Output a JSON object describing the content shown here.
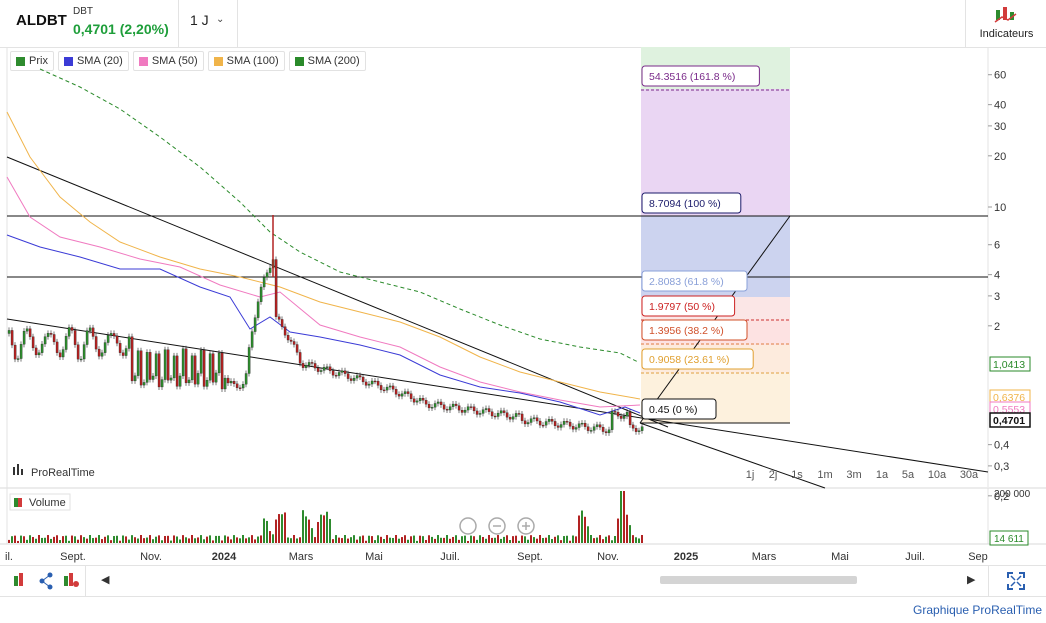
{
  "header": {
    "symbol": "ALDBT",
    "exchange": "DBT",
    "price_change": "0,4701 (2,20%)",
    "timeframe": "1 J",
    "indicators_label": "Indicateurs",
    "price_color": "#1e9e3a"
  },
  "legend": [
    {
      "label": "Prix",
      "color": "#2e8b2e"
    },
    {
      "label": "SMA (20)",
      "color": "#3b3bd6"
    },
    {
      "label": "SMA (50)",
      "color": "#f07ac0"
    },
    {
      "label": "SMA (100)",
      "color": "#f0b44a"
    },
    {
      "label": "SMA (200)",
      "color": "#2a8a2a"
    }
  ],
  "chart_data": {
    "type": "candlestick",
    "scale": "log",
    "y_ticks": [
      "60",
      "40",
      "30",
      "20",
      "10",
      "6",
      "4",
      "3",
      "2",
      "0,4",
      "0,3",
      "0,2"
    ],
    "x_ticks": [
      "il.",
      "Sept.",
      "Nov.",
      "2024",
      "Mars",
      "Mai",
      "Juil.",
      "Sept.",
      "Nov.",
      "2025",
      "Mars",
      "Mai",
      "Juil.",
      "Sep"
    ],
    "fibonacci_levels": [
      {
        "label": "54.3516 (161.8 %)",
        "value": 54.3516
      },
      {
        "label": "8.7094 (100 %)",
        "value": 8.7094
      },
      {
        "label": "2.8083 (61.8 %)",
        "value": 2.8083
      },
      {
        "label": "1.9797 (50 %)",
        "value": 1.9797
      },
      {
        "label": "1.3956 (38.2 %)",
        "value": 1.3956
      },
      {
        "label": "0.9058 (23.61 %)",
        "value": 0.9058
      },
      {
        "label": "0.45 (0 %)",
        "value": 0.45
      }
    ],
    "price_badges": [
      {
        "label": "1,0413",
        "color": "#2a8a2a"
      },
      {
        "label": "0,6376",
        "color": "#f0b44a"
      },
      {
        "label": "0,5553",
        "color": "#f07ac0"
      },
      {
        "label": "0,4701",
        "color": "#111"
      }
    ],
    "approx_close": [
      {
        "x": "2023-07",
        "y": 1.9
      },
      {
        "x": "2023-09",
        "y": 1.8
      },
      {
        "x": "2023-10",
        "y": 1.4
      },
      {
        "x": "2023-11",
        "y": 0.8
      },
      {
        "x": "2024-01",
        "y": 0.8
      },
      {
        "x": "2024-02",
        "y": 2.5
      },
      {
        "x": "2024-03",
        "y": 1.1
      },
      {
        "x": "2024-05",
        "y": 0.85
      },
      {
        "x": "2024-07",
        "y": 0.55
      },
      {
        "x": "2024-09",
        "y": 0.5
      },
      {
        "x": "2024-11",
        "y": 0.47
      }
    ],
    "volume": {
      "title": "Volume",
      "y_ticks": [
        "200 000"
      ],
      "last_value": "14 611"
    },
    "time_buttons": [
      "1j",
      "2j",
      "1s",
      "1m",
      "3m",
      "1a",
      "5a",
      "10a",
      "30a"
    ],
    "watermark": "ProRealTime"
  },
  "footer": {
    "link": "Graphique ProRealTime"
  }
}
